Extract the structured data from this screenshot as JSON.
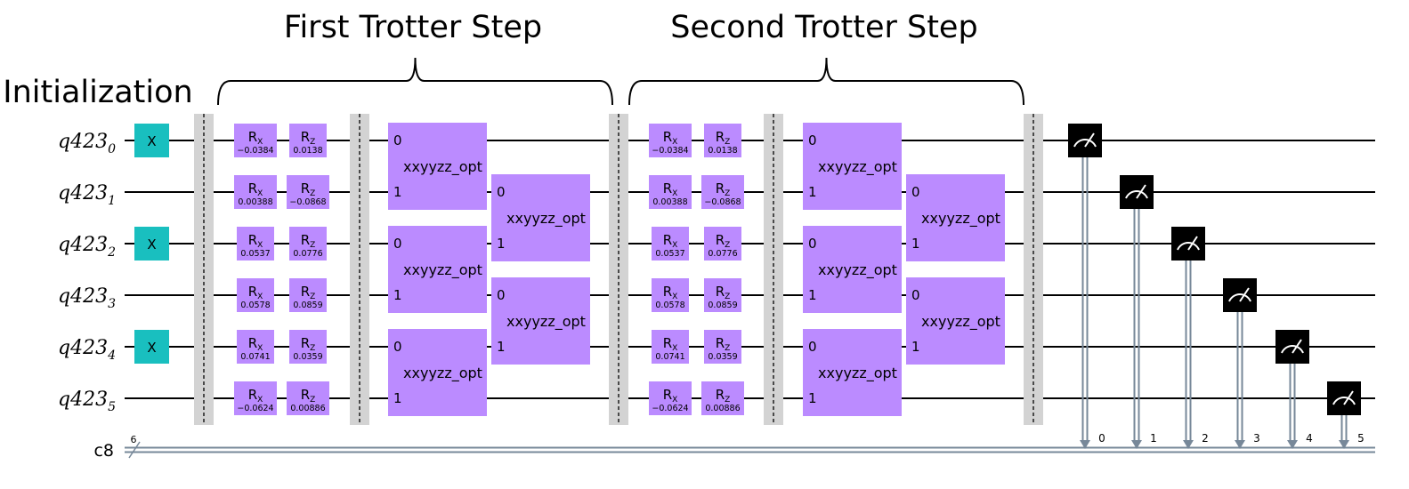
{
  "titles": {
    "initialization": "Initialization",
    "first_step": "First Trotter Step",
    "second_step": "Second Trotter Step"
  },
  "qubits": [
    {
      "name": "q423",
      "index": "0"
    },
    {
      "name": "q423",
      "index": "1"
    },
    {
      "name": "q423",
      "index": "2"
    },
    {
      "name": "q423",
      "index": "3"
    },
    {
      "name": "q423",
      "index": "4"
    },
    {
      "name": "q423",
      "index": "5"
    }
  ],
  "classical": {
    "name": "c8",
    "width": "6"
  },
  "initial_x_qubits": [
    0,
    2,
    4
  ],
  "x_gate_label": "X",
  "rotation_gate": {
    "rx_main": "R",
    "rx_sub": "X",
    "rz_main": "R",
    "rz_sub": "Z"
  },
  "rx_params": [
    "−0.0384",
    "0.00388",
    "0.0537",
    "0.0578",
    "0.0741",
    "−0.0624"
  ],
  "rz_params": [
    "0.0138",
    "−0.0868",
    "0.0776",
    "0.0859",
    "0.0359",
    "0.00886"
  ],
  "two_qubit_gate": {
    "label": "xxyyzz_opt",
    "port_top": "0",
    "port_bottom": "1"
  },
  "measure_bits": [
    "0",
    "1",
    "2",
    "3",
    "4",
    "5"
  ],
  "colors": {
    "x_gate": "#19bfbf",
    "rotation_gate": "#bb8bff",
    "barrier": "#d3d3d3",
    "measure": "#000000",
    "classical_wire": "#778899",
    "wire": "#000000"
  }
}
